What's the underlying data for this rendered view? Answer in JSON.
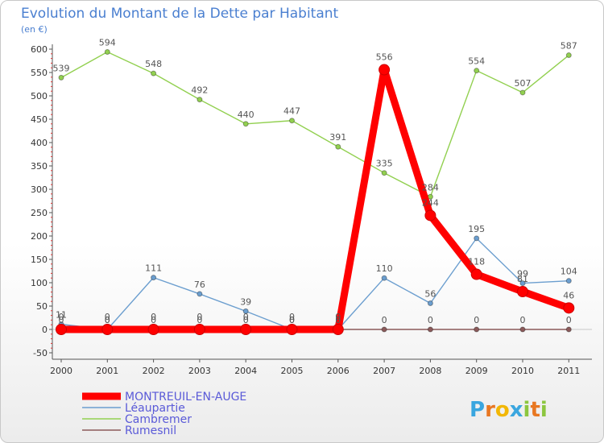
{
  "page": {
    "title": "Evolution du Montant de la Dette par Habitant",
    "unit": "(en €)"
  },
  "brand": {
    "name": "Proxiti",
    "letters": [
      "P",
      "r",
      "o",
      "x",
      "i",
      "t",
      "i"
    ],
    "colors": [
      "#3aa6df",
      "#e87722",
      "#f2b705",
      "#3aa6df",
      "#8cc63f",
      "#e87722",
      "#8cc63f"
    ]
  },
  "chart_data": {
    "type": "line",
    "title": "Evolution du Montant de la Dette par Habitant",
    "ylabel": "(en €)",
    "xlabel": "",
    "x": [
      "2000",
      "2001",
      "2002",
      "2003",
      "2004",
      "2005",
      "2006",
      "2007",
      "2008",
      "2009",
      "2010",
      "2011"
    ],
    "ylim": [
      -50,
      600
    ],
    "yticks": [
      -50,
      0,
      50,
      100,
      150,
      200,
      250,
      300,
      350,
      400,
      450,
      500,
      550,
      600
    ],
    "grid": false,
    "legend_position": "bottom-left",
    "series": [
      {
        "name": "MONTREUIL-EN-AUGE",
        "color": "#ff0000",
        "bold": true,
        "values": [
          0,
          0,
          0,
          0,
          0,
          0,
          0,
          556,
          244,
          118,
          81,
          46
        ],
        "labels": [
          "0",
          "0",
          "0",
          "0",
          "0",
          "0",
          "0",
          "556",
          "244",
          "118",
          "81",
          "46"
        ]
      },
      {
        "name": "Léaupartie",
        "color": "#6b9ecf",
        "bold": false,
        "values": [
          11,
          0,
          111,
          76,
          39,
          0,
          0,
          110,
          56,
          195,
          99,
          104
        ],
        "labels": [
          "11",
          "0",
          "111",
          "76",
          "39",
          "0",
          "0",
          "110",
          "56",
          "195",
          "99",
          "104"
        ]
      },
      {
        "name": "Cambremer",
        "color": "#92d050",
        "bold": false,
        "values": [
          539,
          594,
          548,
          492,
          440,
          447,
          391,
          335,
          284,
          554,
          507,
          587
        ],
        "labels": [
          "539",
          "594",
          "548",
          "492",
          "440",
          "447",
          "391",
          "335",
          "284",
          "554",
          "507",
          "587"
        ]
      },
      {
        "name": "Rumesnil",
        "color": "#8b5a5a",
        "bold": false,
        "values": [
          0,
          0,
          0,
          0,
          0,
          0,
          0,
          0,
          0,
          0,
          0,
          0
        ],
        "labels": [
          "0",
          "0",
          "0",
          "0",
          "0",
          "0",
          "0",
          "0",
          "0",
          "0",
          "0",
          "0"
        ]
      }
    ]
  }
}
